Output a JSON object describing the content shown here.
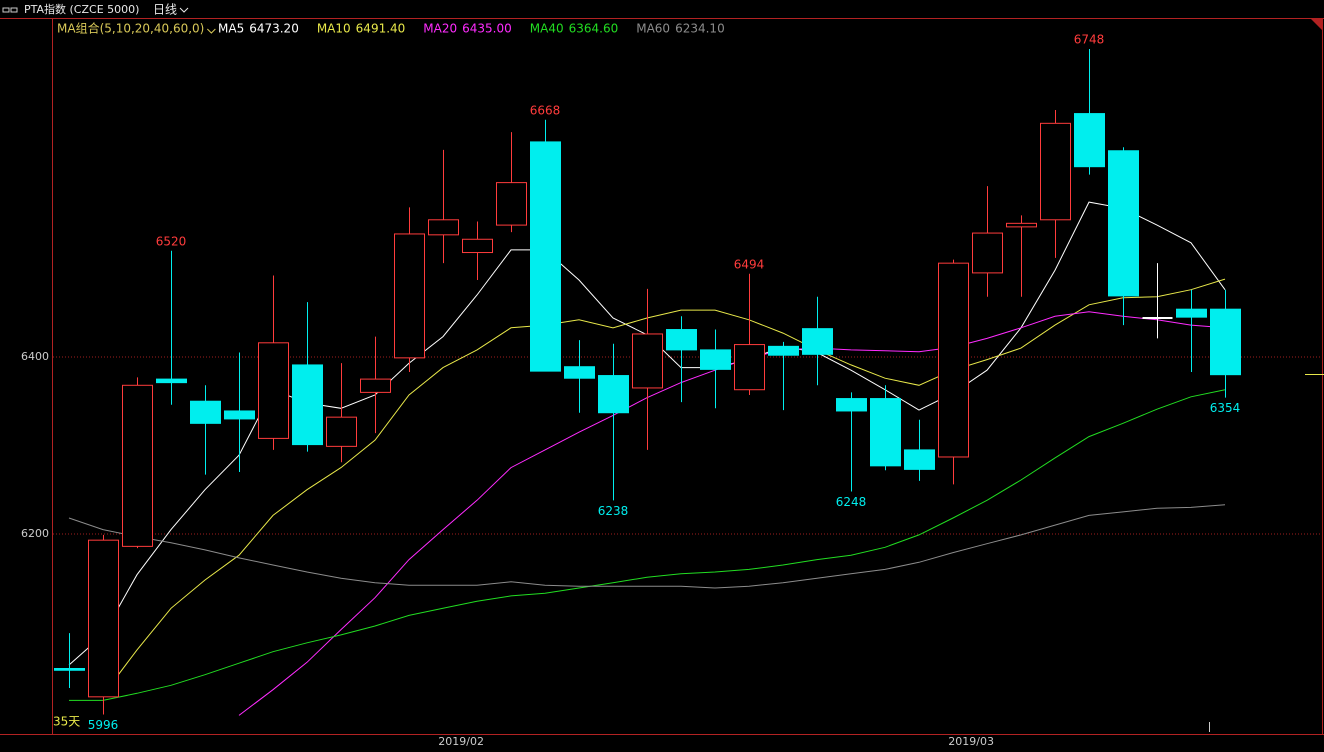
{
  "chart_data": {
    "type": "candlestick",
    "title": "PTA指数 (CZCE 5000)",
    "period": "日线",
    "indicator_label": "MA组合(5,10,20,40,60,0)",
    "count_label": "35天",
    "categories": [
      null,
      null,
      null,
      null,
      null,
      null,
      null,
      null,
      null,
      null,
      null,
      null,
      "2019/02",
      null,
      null,
      null,
      null,
      null,
      null,
      null,
      null,
      null,
      null,
      null,
      null,
      null,
      null,
      "2019/03",
      null,
      null,
      null,
      null,
      null,
      null,
      null
    ],
    "candles": {
      "open": [
        6048,
        6016,
        6186,
        6375,
        6350,
        6339,
        6308,
        6391,
        6299,
        6360,
        6399,
        6538,
        6518,
        6549,
        6643,
        6389,
        6379,
        6365,
        6431,
        6408,
        6363,
        6412,
        6432,
        6353,
        6353,
        6295,
        6287,
        6495,
        6547,
        6555,
        6675,
        6633,
        6444,
        6454,
        6454
      ],
      "high": [
        6088,
        6199,
        6377,
        6520,
        6368,
        6405,
        6492,
        6462,
        6393,
        6423,
        6569,
        6634,
        6553,
        6654,
        6668,
        6419,
        6415,
        6477,
        6446,
        6431,
        6494,
        6417,
        6468,
        6360,
        6368,
        6329,
        6510,
        6593,
        6560,
        6679,
        6748,
        6637,
        6506,
        6476,
        6476
      ],
      "low": [
        6026,
        5996,
        6184,
        6346,
        6267,
        6270,
        6295,
        6293,
        6281,
        6314,
        6383,
        6506,
        6487,
        6541,
        6384,
        6337,
        6238,
        6295,
        6349,
        6342,
        6357,
        6340,
        6368,
        6248,
        6272,
        6260,
        6256,
        6468,
        6468,
        6512,
        6606,
        6436,
        6421,
        6383,
        6354
      ],
      "close": [
        6046,
        6193,
        6368,
        6371,
        6325,
        6330,
        6416,
        6301,
        6332,
        6375,
        6539,
        6555,
        6533,
        6597,
        6384,
        6376,
        6337,
        6426,
        6408,
        6386,
        6414,
        6402,
        6403,
        6339,
        6277,
        6273,
        6506,
        6540,
        6551,
        6664,
        6615,
        6469,
        6444,
        6445,
        6380
      ],
      "up_color": "#ff3c3c",
      "down_color": "#00eeee",
      "flat_color": "#ffffff"
    },
    "high_labels": [
      3,
      14,
      20,
      30
    ],
    "low_labels": [
      1,
      16,
      23,
      34
    ],
    "series": [
      {
        "name": "MA5",
        "legend_value": "6473.20",
        "color": "#ffffff",
        "values": [
          6052,
          6086,
          6154,
          6205,
          6250,
          6289,
          6363,
          6348,
          6342,
          6357,
          6393,
          6423,
          6470,
          6521,
          6521,
          6487,
          6444,
          6425,
          6388,
          6388,
          6397,
          6412,
          6405,
          6385,
          6363,
          6340,
          6359,
          6385,
          6433,
          6498,
          6575,
          6568,
          6549,
          6529,
          6476
        ]
      },
      {
        "name": "MA10",
        "legend_value": "6491.40",
        "color": "#e8e84a",
        "values": [
          null,
          6018,
          6069,
          6116,
          6148,
          6176,
          6221,
          6250,
          6275,
          6306,
          6357,
          6388,
          6408,
          6433,
          6436,
          6442,
          6433,
          6444,
          6453,
          6453,
          6442,
          6427,
          6408,
          6391,
          6376,
          6368,
          6385,
          6397,
          6410,
          6436,
          6459,
          6467,
          6468,
          6476,
          6488
        ]
      },
      {
        "name": "MA20",
        "legend_value": "6435.00",
        "color": "#ff2cff",
        "values": [
          null,
          null,
          null,
          null,
          null,
          5995,
          6024,
          6055,
          6092,
          6128,
          6171,
          6205,
          6238,
          6275,
          6295,
          6315,
          6334,
          6354,
          6371,
          6385,
          6399,
          6408,
          6410,
          6408,
          6407,
          6406,
          6411,
          6421,
          6433,
          6446,
          6451,
          6446,
          6442,
          6436,
          6433
        ]
      },
      {
        "name": "MA40",
        "legend_value": "6364.60",
        "color": "#22dd22",
        "values": [
          6012,
          6012,
          6020,
          6029,
          6041,
          6054,
          6067,
          6077,
          6086,
          6096,
          6108,
          6116,
          6124,
          6130,
          6133,
          6139,
          6145,
          6151,
          6155,
          6157,
          6160,
          6165,
          6171,
          6176,
          6185,
          6199,
          6218,
          6238,
          6261,
          6286,
          6310,
          6325,
          6341,
          6355,
          6363
        ]
      },
      {
        "name": "MA60",
        "legend_value": "6234.10",
        "color": "#8c8c8c",
        "values": [
          6218,
          6205,
          6197,
          6190,
          6182,
          6173,
          6165,
          6157,
          6150,
          6145,
          6142,
          6142,
          6142,
          6146,
          6142,
          6141,
          6141,
          6141,
          6141,
          6139,
          6141,
          6145,
          6150,
          6155,
          6160,
          6168,
          6179,
          6189,
          6199,
          6210,
          6221,
          6225,
          6229,
          6230,
          6233
        ]
      }
    ],
    "ylim": [
      5974,
      6783
    ],
    "yticks": [
      6200,
      6400
    ],
    "grid": true,
    "grid_color": "#a01e1e"
  }
}
